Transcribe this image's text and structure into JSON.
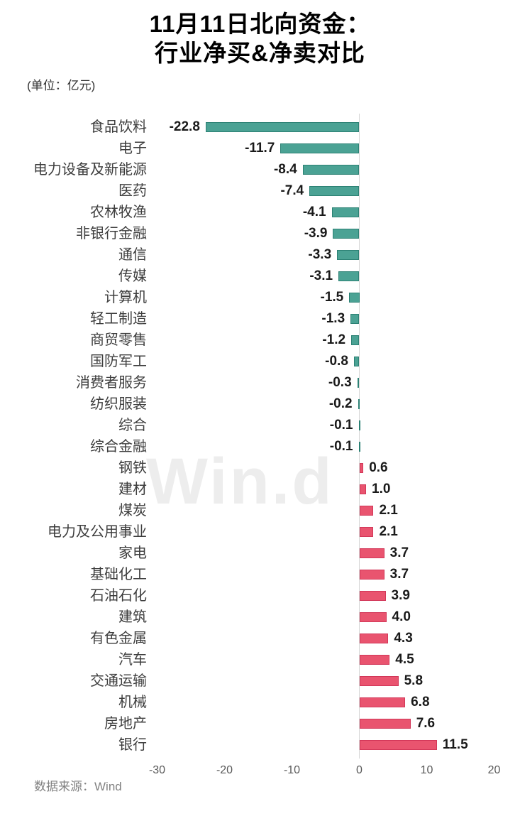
{
  "header": {
    "title_line1": "11月11日北向资金：",
    "title_line2": "行业净买&净卖对比",
    "unit_note": "(单位：亿元)"
  },
  "watermark": {
    "text": "Win.d"
  },
  "footer": {
    "source": "数据来源：Wind"
  },
  "chart_data": {
    "type": "bar",
    "orientation": "horizontal",
    "title": "11月11日北向资金：行业净买&净卖对比",
    "unit": "亿元",
    "categories": [
      "食品饮料",
      "电子",
      "电力设备及新能源",
      "医药",
      "农林牧渔",
      "非银行金融",
      "通信",
      "传媒",
      "计算机",
      "轻工制造",
      "商贸零售",
      "国防军工",
      "消费者服务",
      "纺织服装",
      "综合",
      "综合金融",
      "钢铁",
      "建材",
      "煤炭",
      "电力及公用事业",
      "家电",
      "基础化工",
      "石油石化",
      "建筑",
      "有色金属",
      "汽车",
      "交通运输",
      "机械",
      "房地产",
      "银行"
    ],
    "values": [
      -22.8,
      -11.7,
      -8.4,
      -7.4,
      -4.1,
      -3.9,
      -3.3,
      -3.1,
      -1.5,
      -1.3,
      -1.2,
      -0.8,
      -0.3,
      -0.2,
      -0.1,
      -0.1,
      0.6,
      1.0,
      2.1,
      2.1,
      3.7,
      3.7,
      3.9,
      4.0,
      4.3,
      4.5,
      5.8,
      6.8,
      7.6,
      11.5
    ],
    "x_ticks": [
      -30,
      -20,
      -10,
      0,
      10,
      20
    ],
    "xlim": [
      -31.5,
      24
    ],
    "grid": false,
    "legend": false,
    "value_labels": true,
    "source": "Wind",
    "colors": {
      "negative_fill": "#4ba294",
      "negative_border": "#2c8174",
      "positive_fill": "#e9546f",
      "positive_border": "#d23758",
      "axis_line": "#d6d6d6",
      "tick_label": "#595959",
      "category_label": "#3d3d3d",
      "value_label": "#1a1a1a",
      "watermark": "#ededed"
    }
  }
}
